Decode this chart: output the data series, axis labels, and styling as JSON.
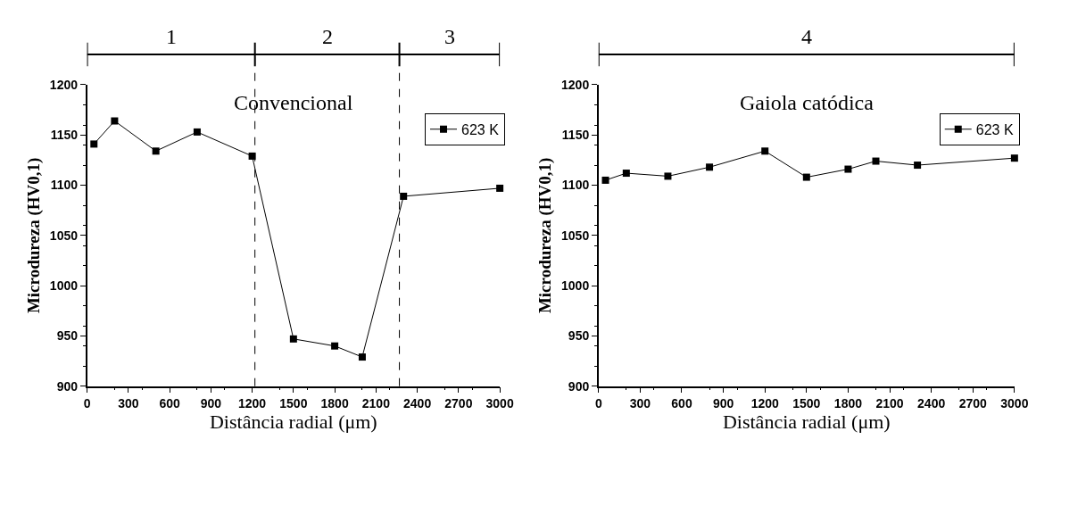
{
  "chart_data": [
    {
      "type": "line",
      "title": "Convencional",
      "xlabel": "Distância radial (μm)",
      "ylabel": "Microdureza (HV0,1)",
      "x": [
        50,
        200,
        500,
        800,
        1200,
        1500,
        1800,
        2000,
        2300,
        3000
      ],
      "series": [
        {
          "name": "623 K",
          "color": "#000000",
          "values": [
            1141,
            1164,
            1134,
            1153,
            1129,
            947,
            940,
            929,
            1089,
            1097
          ]
        }
      ],
      "xlim": [
        0,
        3000
      ],
      "xticks": [
        0,
        300,
        600,
        900,
        1200,
        1500,
        1800,
        2100,
        2400,
        2700,
        3000
      ],
      "ylim": [
        900,
        1200
      ],
      "yticks": [
        900,
        950,
        1000,
        1050,
        1100,
        1150,
        1200
      ],
      "ref_lines": [
        {
          "axis": "x",
          "value": 1220,
          "line_style": "dashed",
          "color": "#000000"
        },
        {
          "axis": "x",
          "value": 2270,
          "line_style": "dashed",
          "color": "#000000"
        }
      ],
      "annotations": [
        "1",
        "2",
        "3"
      ],
      "legend": "top right",
      "marker": "square",
      "line_style": "solid"
    },
    {
      "type": "line",
      "title": "Gaiola catódica",
      "xlabel": "Distância radial (μm)",
      "ylabel": "Microdureza (HV0,1)",
      "x": [
        50,
        200,
        500,
        800,
        1200,
        1500,
        1800,
        2000,
        2300,
        3000
      ],
      "series": [
        {
          "name": "623 K",
          "color": "#000000",
          "values": [
            1105,
            1112,
            1109,
            1118,
            1134,
            1108,
            1116,
            1124,
            1120,
            1127
          ]
        }
      ],
      "xlim": [
        0,
        3000
      ],
      "xticks": [
        0,
        300,
        600,
        900,
        1200,
        1500,
        1800,
        2100,
        2400,
        2700,
        3000
      ],
      "ylim": [
        900,
        1200
      ],
      "yticks": [
        900,
        950,
        1000,
        1050,
        1100,
        1150,
        1200
      ],
      "annotations": [
        "4"
      ],
      "legend": "top right",
      "marker": "square",
      "line_style": "solid"
    }
  ]
}
